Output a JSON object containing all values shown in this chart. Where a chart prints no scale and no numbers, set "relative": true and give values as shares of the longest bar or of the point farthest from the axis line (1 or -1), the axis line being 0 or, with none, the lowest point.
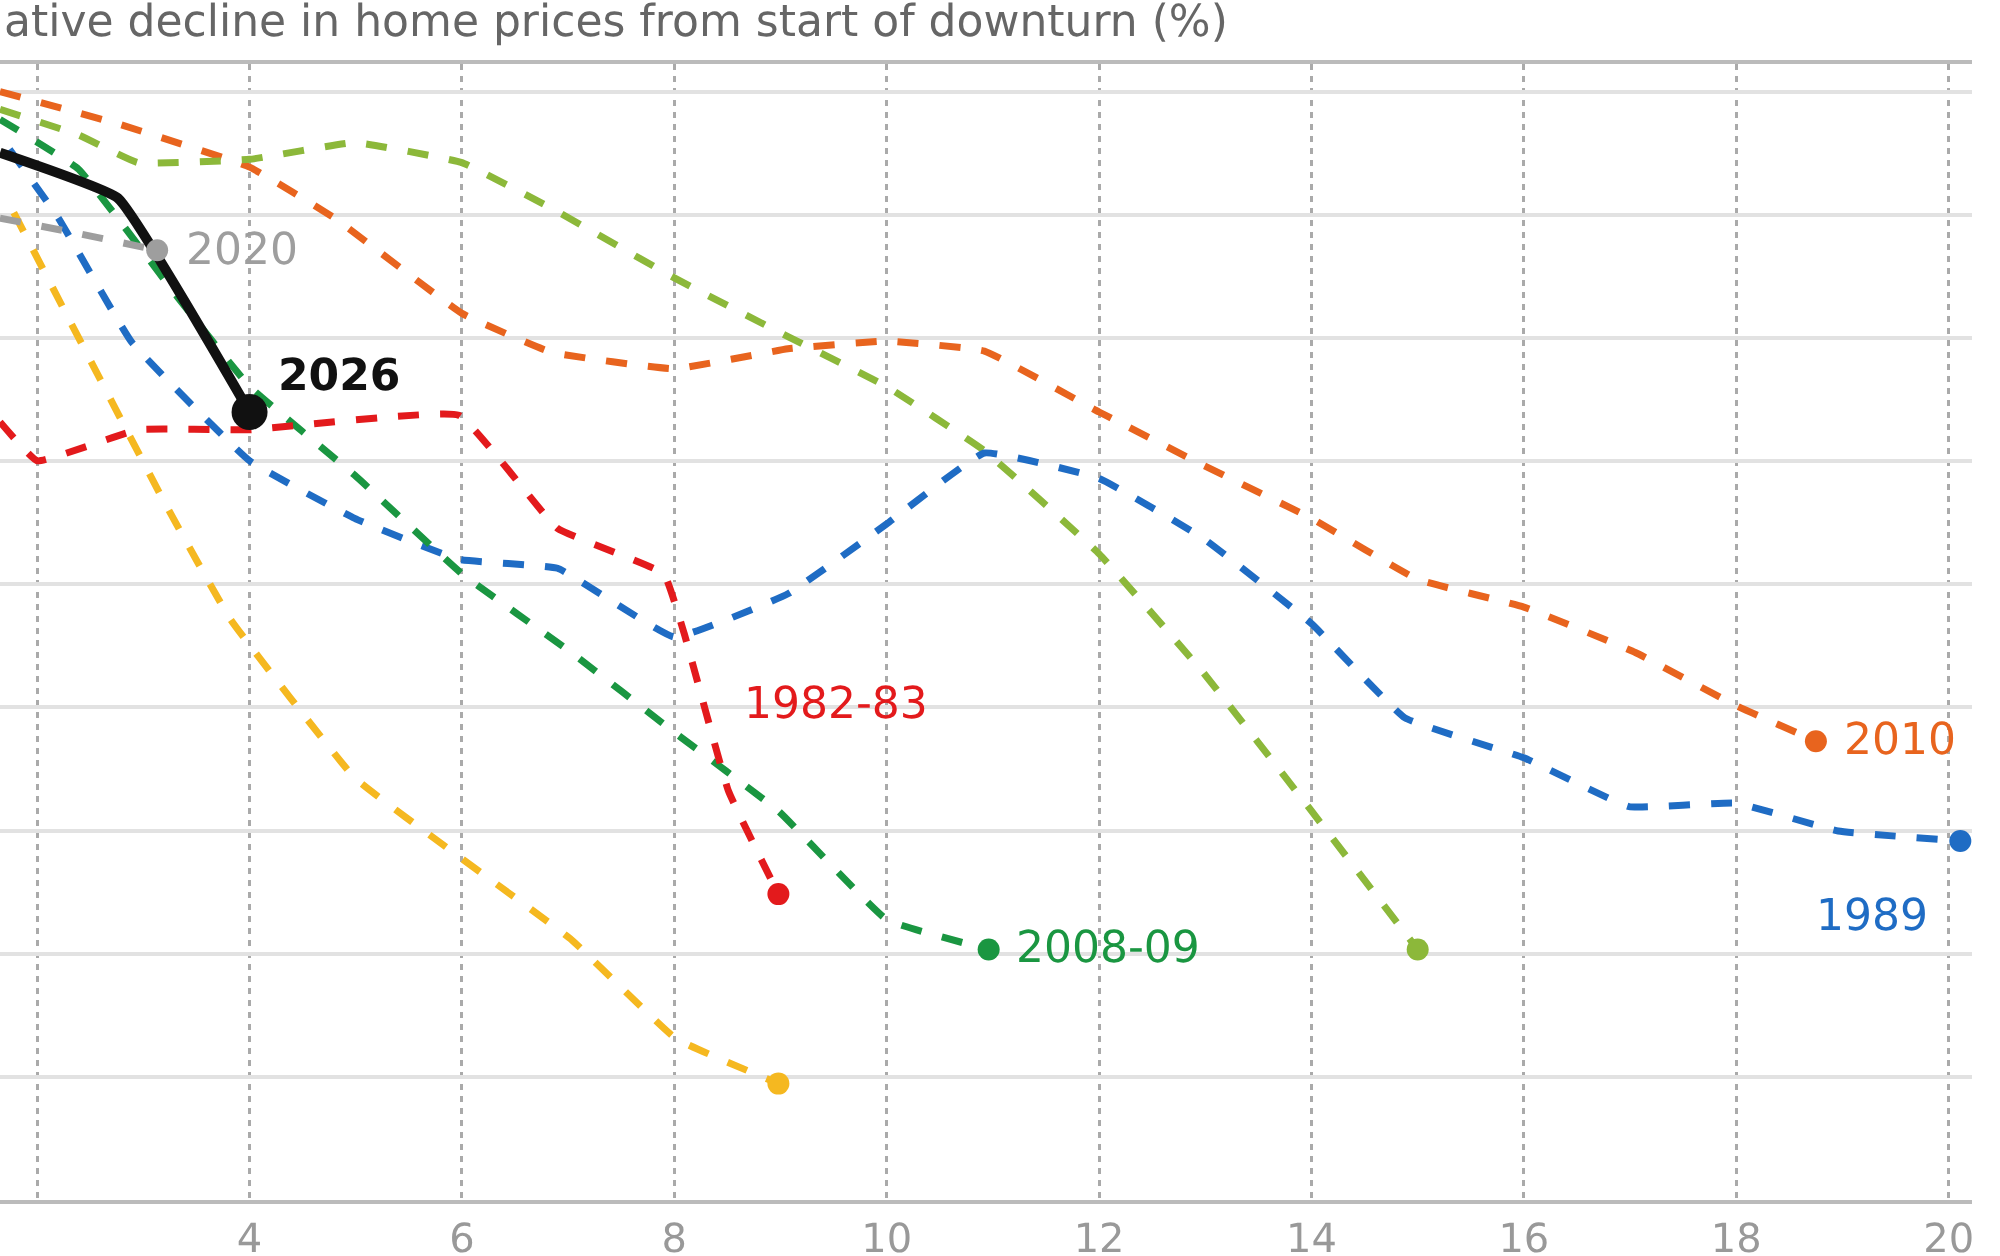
{
  "chart_data": {
    "type": "line",
    "title": "ative decline in home prices from start of downturn (%)",
    "relative": true,
    "grid": true,
    "legend": false,
    "xlim": [
      1.65,
      20.22
    ],
    "xticks": [
      {
        "value": 2,
        "label": null
      },
      4,
      6,
      8,
      10,
      12,
      14,
      16,
      18,
      20
    ],
    "series": [
      {
        "name": "2010",
        "color": "#e8641e",
        "line_style": "dashed",
        "x": [
          1.65,
          2.76,
          4,
          4.8,
          6,
          6.84,
          8,
          9.07,
          10,
          10.92,
          12,
          12.98,
          14,
          15,
          16,
          17.05,
          18,
          18.75
        ],
        "values": [
          1.0,
          0.971,
          0.932,
          0.886,
          0.8,
          0.765,
          0.75,
          0.768,
          0.775,
          0.766,
          0.711,
          0.663,
          0.615,
          0.56,
          0.535,
          0.494,
          0.446,
          0.414
        ]
      },
      {
        "color": "#8cb83a",
        "line_style": "dashed",
        "x": [
          1.65,
          2.39,
          2.95,
          4,
          4.99,
          6,
          6.84,
          8,
          9.07,
          10,
          10.92,
          12,
          12.98,
          14,
          15
        ],
        "values": [
          0.984,
          0.961,
          0.936,
          0.939,
          0.954,
          0.936,
          0.895,
          0.832,
          0.779,
          0.734,
          0.676,
          0.583,
          0.476,
          0.351,
          0.226
        ]
      },
      {
        "name": "1989",
        "color": "#1f6cc4",
        "line_style": "dashed",
        "x": [
          1.74,
          2.2,
          2.89,
          4,
          4.99,
          5.97,
          6.9,
          8,
          9.07,
          10,
          10.92,
          12,
          12.98,
          14,
          14.88,
          16,
          16.99,
          18,
          18.96,
          20.11
        ],
        "values": [
          0.948,
          0.886,
          0.774,
          0.667,
          0.615,
          0.578,
          0.57,
          0.508,
          0.547,
          0.61,
          0.674,
          0.651,
          0.597,
          0.52,
          0.435,
          0.399,
          0.355,
          0.358,
          0.333,
          0.324
        ]
      },
      {
        "name": "2008-09",
        "color": "#1a9641",
        "line_style": "dashed",
        "x": [
          1.65,
          2.39,
          3.32,
          4,
          4.99,
          6,
          7.03,
          8,
          8.98,
          10,
          10.96
        ],
        "values": [
          0.975,
          0.93,
          0.815,
          0.734,
          0.654,
          0.565,
          0.494,
          0.422,
          0.351,
          0.253,
          0.226
        ]
      },
      {
        "name": "1982-83",
        "color": "#e31a1c",
        "line_style": "dashed",
        "x": [
          1.65,
          2,
          2.95,
          4,
          5.97,
          6.9,
          7.9,
          8.09,
          8.51,
          8.98
        ],
        "values": [
          0.702,
          0.667,
          0.695,
          0.695,
          0.708,
          0.606,
          0.565,
          0.512,
          0.369,
          0.276
        ]
      },
      {
        "color": "#f5b820",
        "line_style": "dashed",
        "x": [
          1.78,
          2.26,
          3.19,
          3.82,
          4.99,
          5.97,
          7.03,
          8.01,
          8.98
        ],
        "values": [
          0.891,
          0.802,
          0.631,
          0.524,
          0.381,
          0.31,
          0.235,
          0.146,
          0.105
        ]
      },
      {
        "name": "2020",
        "color": "#9e9e9e",
        "line_style": "dashed",
        "x": [
          1.65,
          2.39,
          3.13
        ],
        "values": [
          0.886,
          0.872,
          0.857
        ]
      },
      {
        "name": "2026",
        "color": "#111111",
        "line_style": "solid",
        "x": [
          1.65,
          2.76,
          4
        ],
        "values": [
          0.945,
          0.904,
          0.711
        ]
      }
    ]
  }
}
